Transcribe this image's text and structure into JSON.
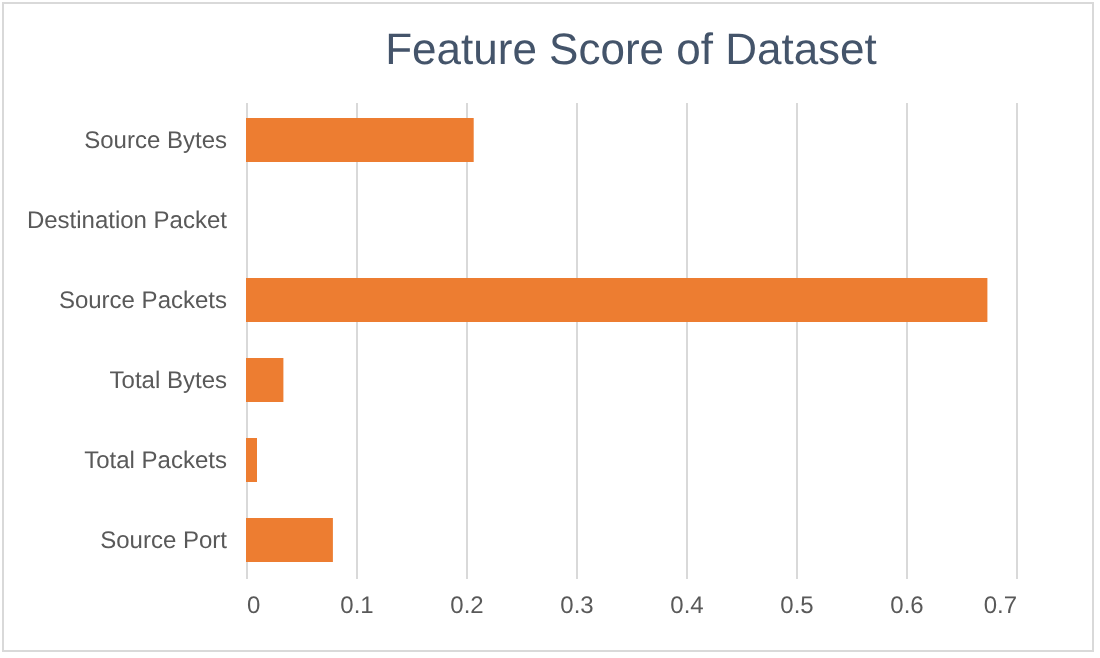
{
  "chart_data": {
    "type": "bar",
    "orientation": "horizontal",
    "title": "Feature Score of Dataset",
    "categories": [
      "Source Bytes",
      "Destination Packet",
      "Source Packets",
      "Total Bytes",
      "Total Packets",
      "Source Port"
    ],
    "values": [
      0.207,
      0,
      0.674,
      0.034,
      0.01,
      0.079
    ],
    "color": "#ed7d31",
    "xlim": [
      0,
      0.7
    ],
    "xticks": [
      0,
      0.1,
      0.2,
      0.3,
      0.4,
      0.5,
      0.6,
      0.7
    ],
    "grid": "x"
  }
}
